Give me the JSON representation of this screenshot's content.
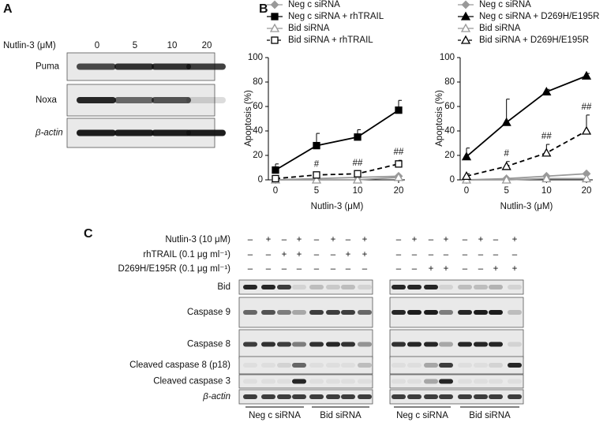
{
  "panels": {
    "a": "A",
    "b": "B",
    "c": "C"
  },
  "panel_a": {
    "treatment_label": "Nutlin-3 (μM)",
    "doses": [
      "0",
      "5",
      "10",
      "20"
    ],
    "blots": [
      "Puma",
      "Noxa",
      "β-actin"
    ]
  },
  "chart_data": [
    {
      "type": "line",
      "categories": [
        "0",
        "5",
        "10",
        "20"
      ],
      "xlabel": "Nutlin-3 (μM)",
      "ylabel": "Apoptosis (%)",
      "ylim": [
        0,
        100
      ],
      "yticks": [
        0,
        20,
        40,
        60,
        80,
        100
      ],
      "series": [
        {
          "name": "Neg c siRNA",
          "color": "#999999",
          "marker": "diamond",
          "filled": true,
          "dashed": false,
          "values": [
            0,
            1,
            2,
            3
          ]
        },
        {
          "name": "Neg c siRNA + rhTRAIL",
          "color": "#000000",
          "marker": "square",
          "filled": true,
          "dashed": false,
          "values": [
            8,
            28,
            35,
            57
          ],
          "errors": [
            5,
            10,
            6,
            8
          ]
        },
        {
          "name": "Bid siRNA",
          "color": "#999999",
          "marker": "triangle",
          "filled": false,
          "dashed": false,
          "values": [
            0,
            0,
            0,
            2
          ]
        },
        {
          "name": "Bid siRNA + rhTRAIL",
          "color": "#000000",
          "marker": "square",
          "filled": false,
          "dashed": true,
          "values": [
            1,
            4,
            5,
            13
          ],
          "errors": [
            1,
            2,
            2,
            3
          ],
          "significance": [
            null,
            "#",
            "##",
            "##"
          ]
        }
      ]
    },
    {
      "type": "line",
      "categories": [
        "0",
        "5",
        "10",
        "20"
      ],
      "xlabel": "Nutlin-3 (μM)",
      "ylabel": "Apoptosis (%)",
      "ylim": [
        0,
        100
      ],
      "yticks": [
        0,
        20,
        40,
        60,
        80,
        100
      ],
      "series": [
        {
          "name": "Neg c siRNA",
          "color": "#999999",
          "marker": "diamond",
          "filled": true,
          "dashed": false,
          "values": [
            0,
            1,
            3,
            5
          ]
        },
        {
          "name": "Neg c siRNA + D269H/E195R",
          "color": "#000000",
          "marker": "triangle",
          "filled": true,
          "dashed": false,
          "values": [
            19,
            47,
            72,
            85
          ],
          "errors": [
            7,
            19,
            2,
            2
          ]
        },
        {
          "name": "Bid siRNA",
          "color": "#999999",
          "marker": "triangle",
          "filled": false,
          "dashed": false,
          "values": [
            0,
            0,
            1,
            1
          ]
        },
        {
          "name": "Bid siRNA + D269H/E195R",
          "color": "#000000",
          "marker": "triangle",
          "filled": false,
          "dashed": true,
          "values": [
            3,
            11,
            22,
            40
          ],
          "errors": [
            2,
            4,
            7,
            13
          ],
          "significance": [
            null,
            "#",
            "##",
            "##"
          ]
        }
      ]
    }
  ],
  "panel_c": {
    "treatments": [
      {
        "label": "Nutlin-3 (10 μM)",
        "left": [
          "–",
          "+",
          "–",
          "+",
          "–",
          "+",
          "–",
          "+"
        ],
        "right": [
          "–",
          "+",
          "–",
          "+",
          "–",
          "+",
          "–",
          "+"
        ]
      },
      {
        "label": "rhTRAIL (0.1 μg ml⁻¹)",
        "left": [
          "–",
          "–",
          "+",
          "+",
          "–",
          "–",
          "+",
          "+"
        ],
        "right": [
          "–",
          "–",
          "–",
          "–",
          "–",
          "–",
          "–",
          "–"
        ]
      },
      {
        "label": "D269H/E195R (0.1 μg ml⁻¹)",
        "left": [
          "–",
          "–",
          "–",
          "–",
          "–",
          "–",
          "–",
          "–"
        ],
        "right": [
          "–",
          "–",
          "+",
          "+",
          "–",
          "–",
          "+",
          "+"
        ]
      }
    ],
    "blots": [
      "Bid",
      "Caspase 9",
      "Caspase 8",
      "Cleaved caspase 8 (p18)",
      "Cleaved caspase 3",
      "β-actin"
    ],
    "groups": {
      "left": [
        "Neg c siRNA",
        "Bid siRNA"
      ],
      "right": [
        "Neg c siRNA",
        "Bid siRNA"
      ]
    }
  }
}
